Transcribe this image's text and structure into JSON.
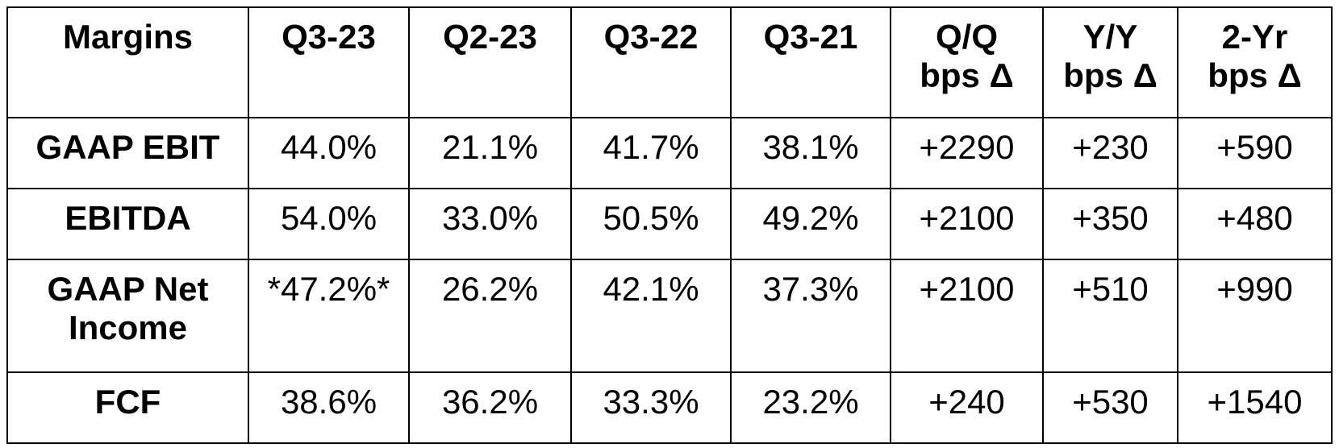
{
  "table": {
    "header": [
      "Margins",
      "Q3-23",
      "Q2-23",
      "Q3-22",
      "Q3-21",
      [
        "Q/Q",
        "bps Δ"
      ],
      [
        "Y/Y",
        "bps Δ"
      ],
      [
        "2-Yr",
        "bps Δ"
      ]
    ],
    "rows": [
      [
        "GAAP EBIT",
        "44.0%",
        "21.1%",
        "41.7%",
        "38.1%",
        "+2290",
        "+230",
        "+590"
      ],
      [
        "EBITDA",
        "54.0%",
        "33.0%",
        "50.5%",
        "49.2%",
        "+2100",
        "+350",
        "+480"
      ],
      [
        "GAAP Net Income",
        "*47.2%*",
        "26.2%",
        "42.1%",
        "37.3%",
        "+2100",
        "+510",
        "+990"
      ],
      [
        "FCF",
        "38.6%",
        "36.2%",
        "33.3%",
        "23.2%",
        "+240",
        "+530",
        "+1540"
      ]
    ]
  }
}
